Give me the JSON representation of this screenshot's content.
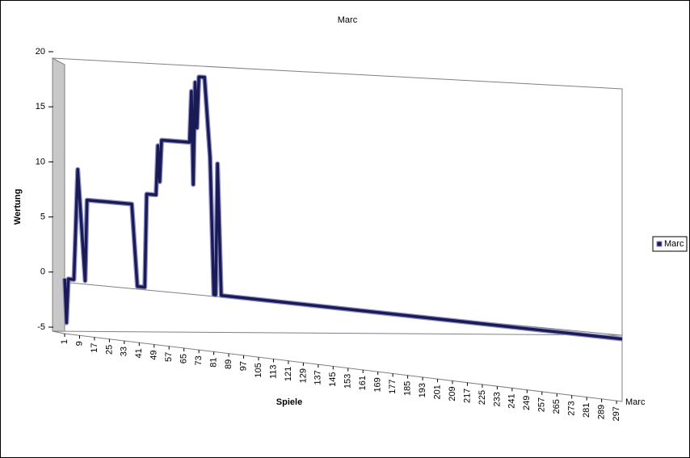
{
  "chart_data": {
    "type": "line",
    "title": "Marc",
    "y_label": "Wertung",
    "x_label": "Spiele",
    "x": [
      1,
      2,
      3,
      6,
      8,
      10,
      12,
      13,
      37,
      40,
      44,
      45,
      50,
      51,
      52,
      53,
      68,
      69,
      70,
      71,
      72,
      73,
      76,
      79,
      81,
      82,
      83,
      85,
      300
    ],
    "series": [
      {
        "name": "Marc",
        "color": "#1a1a55",
        "values": [
          0,
          -4,
          0,
          0,
          10,
          5,
          0,
          7.3,
          7.3,
          0,
          0,
          8.3,
          8.3,
          12.7,
          9.5,
          13.2,
          13.2,
          17.7,
          9.5,
          18.5,
          14.5,
          19,
          19,
          12,
          0,
          0,
          11.5,
          0,
          0
        ]
      }
    ],
    "xlim": [
      1,
      300
    ],
    "xticks": [
      1,
      9,
      17,
      25,
      33,
      41,
      49,
      57,
      65,
      73,
      81,
      89,
      97,
      105,
      113,
      121,
      129,
      137,
      145,
      153,
      161,
      169,
      177,
      185,
      193,
      201,
      209,
      217,
      225,
      233,
      241,
      249,
      257,
      265,
      273,
      281,
      289,
      297
    ],
    "ylim": [
      -5,
      20
    ],
    "yticks": [
      -5,
      0,
      5,
      10,
      15,
      20
    ],
    "legend": "right"
  }
}
